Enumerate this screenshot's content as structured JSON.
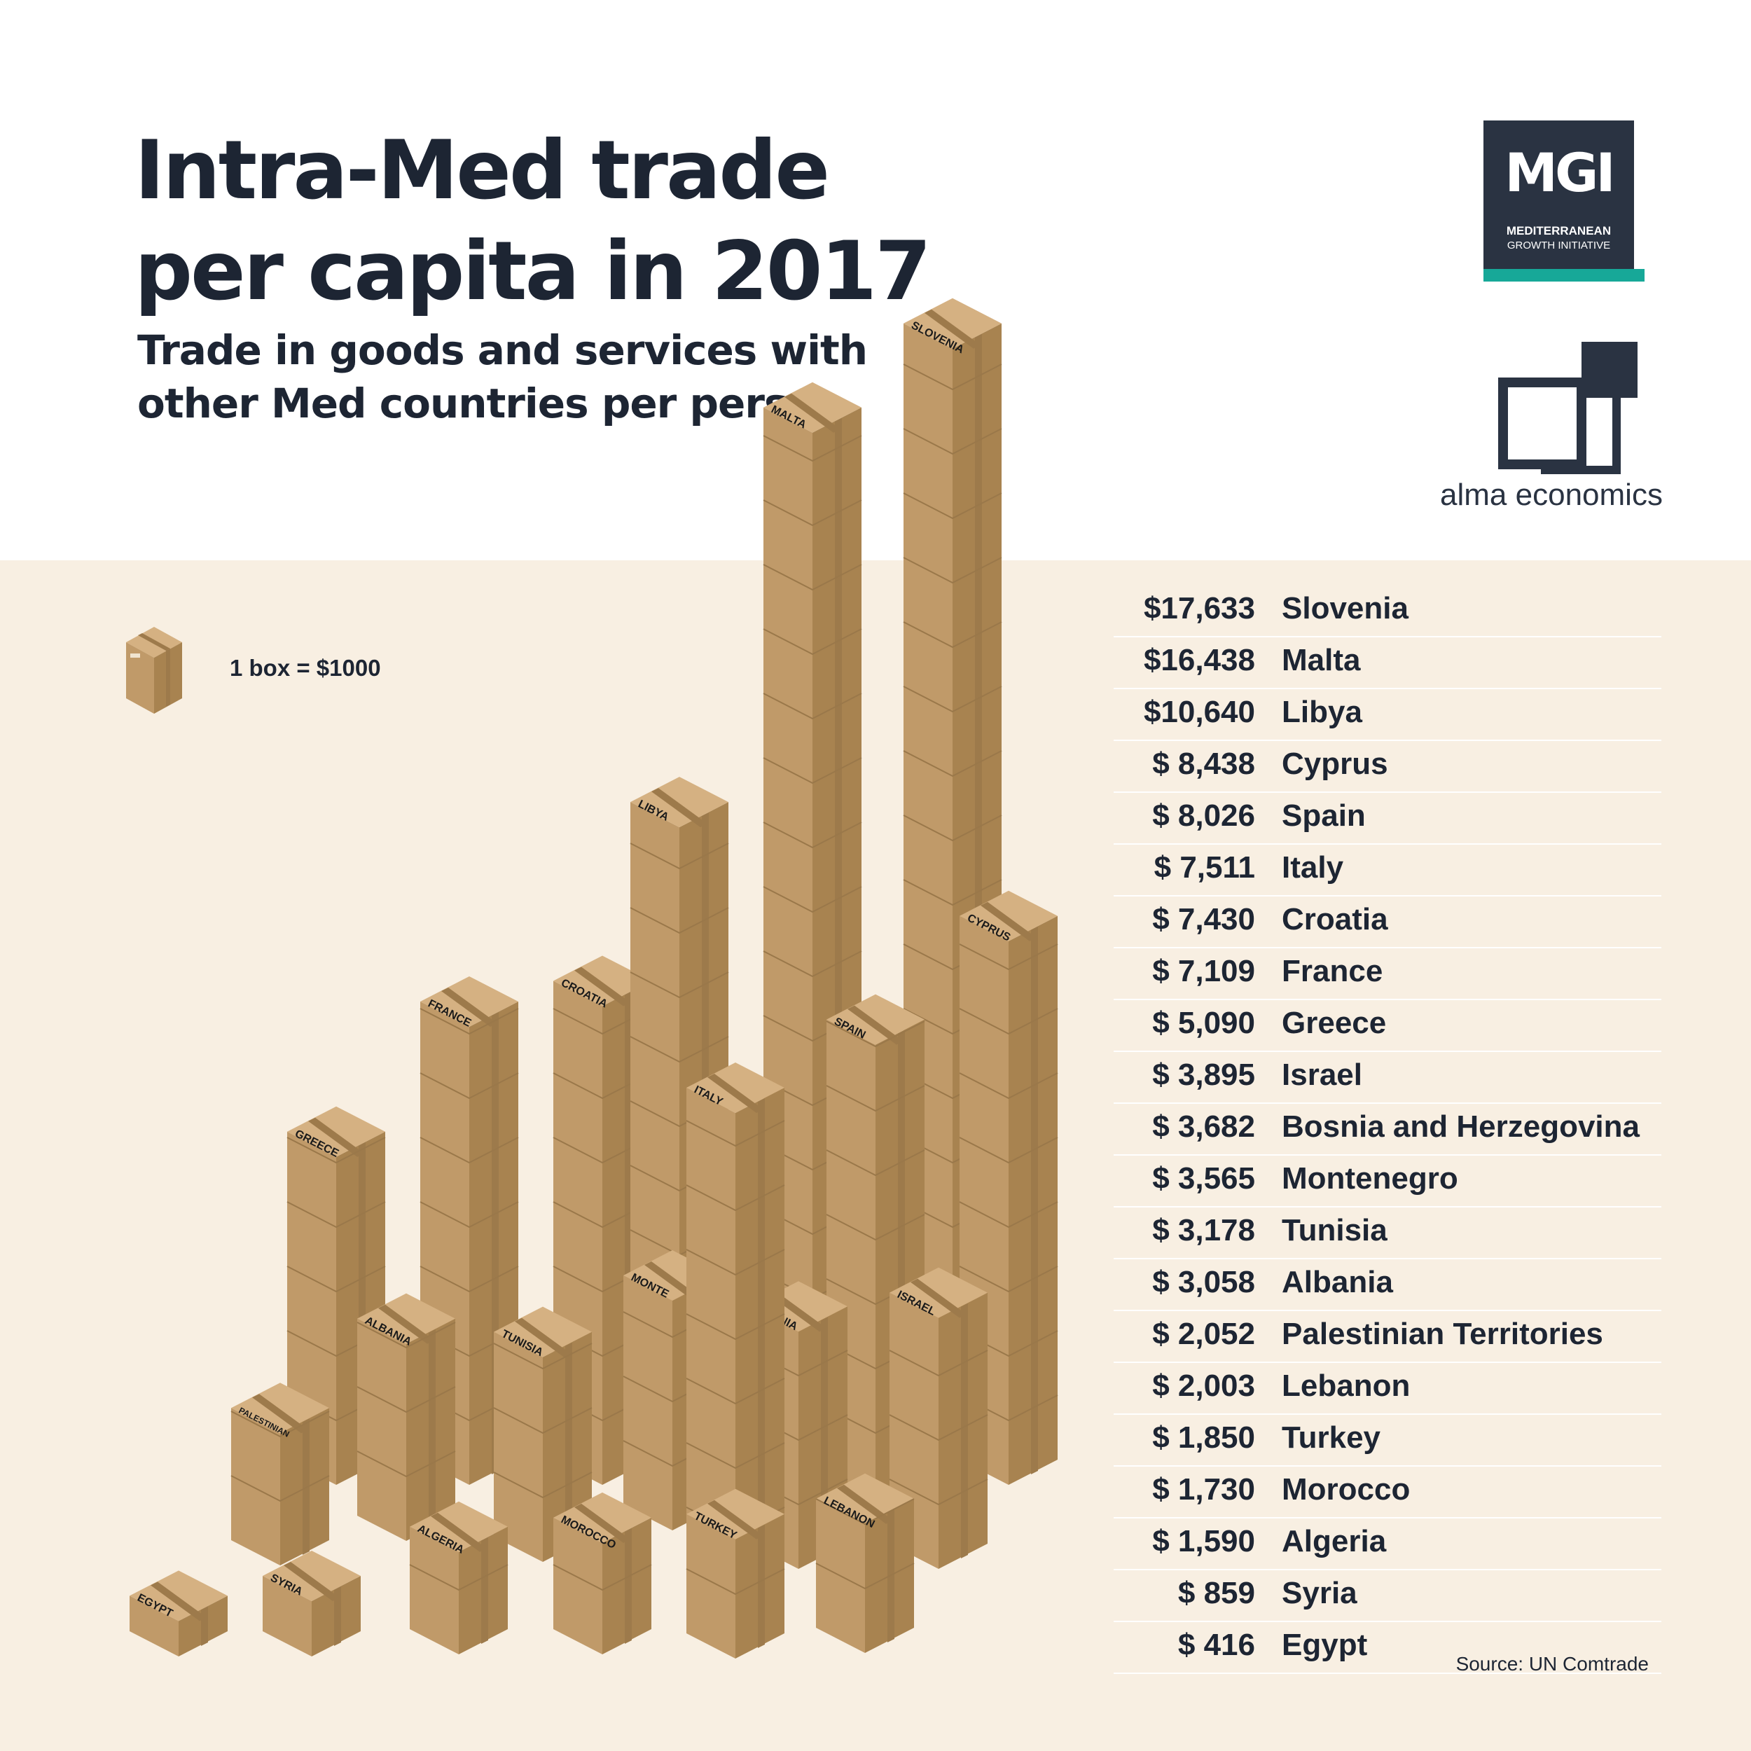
{
  "title_lines": [
    "Intra-Med trade",
    "per capita in 2017"
  ],
  "subtitle_lines": [
    "Trade in goods and services with",
    "other Med countries per person"
  ],
  "logo_mgi": {
    "mark": "MGI",
    "line1": "MEDITERRANEAN",
    "line2": "GROWTH INITIATIVE"
  },
  "logo_alma": {
    "word1": "alma",
    "word2": "economics"
  },
  "legend_label": "1 box = $1000",
  "source": "Source: UN Comtrade",
  "colors": {
    "box_left": "#c09a69",
    "box_right": "#a88350",
    "box_top": "#d5b182",
    "tape": "#9d7a4b",
    "table_bg": "#f8efe2"
  },
  "table_rows": [
    {
      "value": "$17,633",
      "country": "Slovenia"
    },
    {
      "value": "$16,438",
      "country": "Malta"
    },
    {
      "value": "$10,640",
      "country": "Libya"
    },
    {
      "value": "$ 8,438",
      "country": "Cyprus"
    },
    {
      "value": "$ 8,026",
      "country": "Spain"
    },
    {
      "value": "$ 7,511",
      "country": "Italy"
    },
    {
      "value": "$ 7,430",
      "country": "Croatia"
    },
    {
      "value": "$ 7,109",
      "country": "France"
    },
    {
      "value": "$ 5,090",
      "country": "Greece"
    },
    {
      "value": "$ 3,895",
      "country": "Israel"
    },
    {
      "value": "$ 3,682",
      "country": "Bosnia and Herzegovina"
    },
    {
      "value": "$ 3,565",
      "country": "Montenegro"
    },
    {
      "value": "$ 3,178",
      "country": "Tunisia"
    },
    {
      "value": "$ 3,058",
      "country": "Albania"
    },
    {
      "value": "$ 2,052",
      "country": "Palestinian Territories"
    },
    {
      "value": "$ 2,003",
      "country": "Lebanon"
    },
    {
      "value": "$ 1,850",
      "country": "Turkey"
    },
    {
      "value": "$ 1,730",
      "country": "Morocco"
    },
    {
      "value": "$ 1,590",
      "country": "Algeria"
    },
    {
      "value": "$ 859",
      "country": "Syria"
    },
    {
      "value": "$ 416",
      "country": "Egypt"
    }
  ],
  "chart_data": {
    "type": "bar",
    "title": "Intra-Med trade per capita in 2017",
    "subtitle": "Trade in goods and services with other Med countries per person",
    "unit_note": "1 box = $1000",
    "categories": [
      "Slovenia",
      "Malta",
      "Libya",
      "Cyprus",
      "Spain",
      "Italy",
      "Croatia",
      "France",
      "Greece",
      "Israel",
      "Bosnia and Herzegovina",
      "Montenegro",
      "Tunisia",
      "Albania",
      "Palestinian Territories",
      "Lebanon",
      "Turkey",
      "Morocco",
      "Algeria",
      "Syria",
      "Egypt"
    ],
    "values": [
      17633,
      16438,
      10640,
      8438,
      8026,
      7511,
      7430,
      7109,
      5090,
      3895,
      3682,
      3565,
      3178,
      3058,
      2052,
      2003,
      1850,
      1730,
      1590,
      859,
      416
    ],
    "stack_labels": [
      "SLOVENIA",
      "MALTA",
      "LIBYA",
      "CYPRUS",
      "SPAIN",
      "ITALY",
      "CROATIA",
      "FRANCE",
      "GREECE",
      "ISRAEL",
      "BOSNIA",
      "MONTE",
      "TUNISIA",
      "ALBANIA",
      "PALESTINIAN",
      "LEBANON",
      "TURKEY",
      "MOROCCO",
      "ALGERIA",
      "SYRIA",
      "EGYPT"
    ]
  }
}
